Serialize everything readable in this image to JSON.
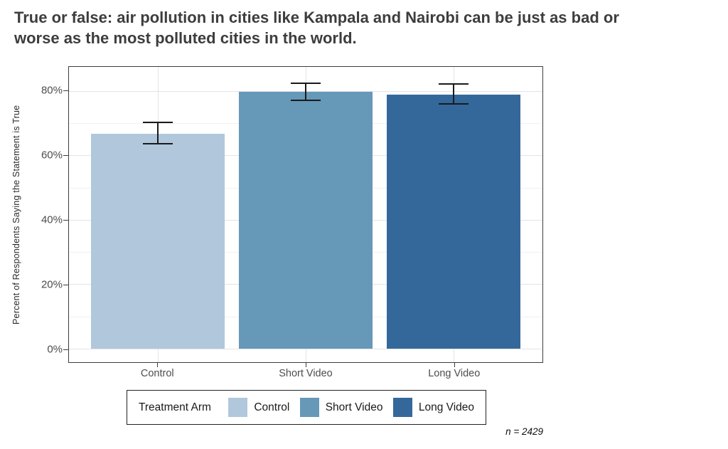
{
  "chart_data": {
    "type": "bar",
    "title": "True or false: air pollution in cities like Kampala and Nairobi can be just as bad or worse as the most polluted cities in the world.",
    "xlabel": "",
    "ylabel": "Percent of Respondents Saying the Statement is True",
    "categories": [
      "Control",
      "Short Video",
      "Long Video"
    ],
    "values": [
      66.8,
      79.8,
      78.9
    ],
    "error_low": [
      63.6,
      77.1,
      76.1
    ],
    "error_high": [
      70.2,
      82.5,
      82.2
    ],
    "bar_colors": [
      "#B0C7DC",
      "#6698B8",
      "#34689B"
    ],
    "error_bar_color": "#1a1a1a",
    "y_ticks": [
      0,
      20,
      40,
      60,
      80
    ],
    "y_tick_labels": [
      "0%",
      "20%",
      "40%",
      "60%",
      "80%"
    ],
    "y_minor_ticks": [
      10,
      30,
      50,
      70
    ],
    "ylim": [
      -4.2,
      87.5
    ],
    "grid": true,
    "legend": {
      "title": "Treatment Arm",
      "entries": [
        "Control",
        "Short Video",
        "Long Video"
      ],
      "position": "bottom"
    },
    "annotation": "n = 2429"
  },
  "colors": {
    "title_text": "#3d3d3d",
    "axis_text": "#4d4d4d",
    "panel_border": "#3d3d3d",
    "grid_major": "#e4e4e4",
    "grid_minor": "#f1f1f1"
  }
}
